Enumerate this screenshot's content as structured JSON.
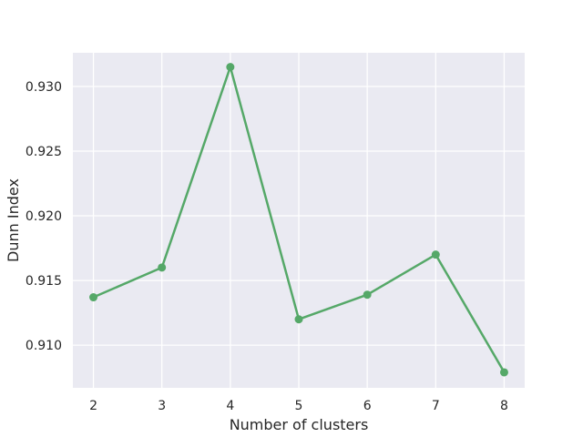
{
  "chart_data": {
    "type": "line",
    "xlabel": "Number of clusters",
    "ylabel": "Dunn Index",
    "x": [
      2,
      3,
      4,
      5,
      6,
      7,
      8
    ],
    "series": [
      {
        "values": [
          0.9137,
          0.916,
          0.9315,
          0.912,
          0.9139,
          0.917,
          0.9079
        ],
        "color": "#55a868",
        "marker": "circle"
      }
    ],
    "xlim": [
      1.7,
      8.3
    ],
    "ylim": [
      0.9067,
      0.9326
    ],
    "xticks": [
      2,
      3,
      4,
      5,
      6,
      7,
      8
    ],
    "yticks": [
      0.91,
      0.915,
      0.92,
      0.925,
      0.93
    ],
    "xtick_labels": [
      "2",
      "3",
      "4",
      "5",
      "6",
      "7",
      "8"
    ],
    "ytick_labels": [
      "0.910",
      "0.915",
      "0.920",
      "0.925",
      "0.930"
    ],
    "grid": true,
    "background_color": "#eaeaf2",
    "grid_color": "#ffffff",
    "legend": "none"
  }
}
